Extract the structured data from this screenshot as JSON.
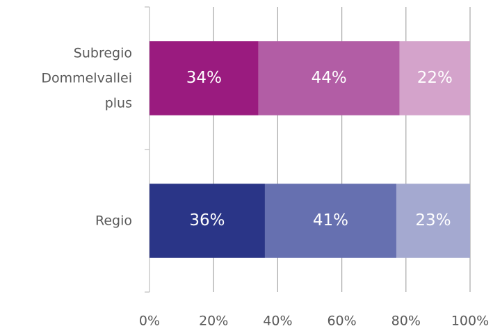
{
  "chart_data": {
    "type": "stacked-bar-horizontal",
    "categories": [
      "Subregio Dommelvallei plus",
      "Regio"
    ],
    "series": [
      {
        "colors": [
          "#9a1b7f",
          "#2a3587"
        ],
        "values": [
          34,
          36
        ],
        "value_labels": [
          "34%",
          "36%"
        ]
      },
      {
        "colors": [
          "#b25da5",
          "#6670b0"
        ],
        "values": [
          44,
          41
        ],
        "value_labels": [
          "44%",
          "41%"
        ]
      },
      {
        "colors": [
          "#d4a3cb",
          "#a4a9d0"
        ],
        "values": [
          22,
          23
        ],
        "value_labels": [
          "22%",
          "23%"
        ]
      }
    ],
    "xlim": [
      0,
      100
    ],
    "xticks": [
      {
        "value": 0,
        "label": "0%"
      },
      {
        "value": 20,
        "label": "20%"
      },
      {
        "value": 40,
        "label": "40%"
      },
      {
        "value": 60,
        "label": "60%"
      },
      {
        "value": 80,
        "label": "80%"
      },
      {
        "value": 100,
        "label": "100%"
      }
    ],
    "grid": true
  }
}
